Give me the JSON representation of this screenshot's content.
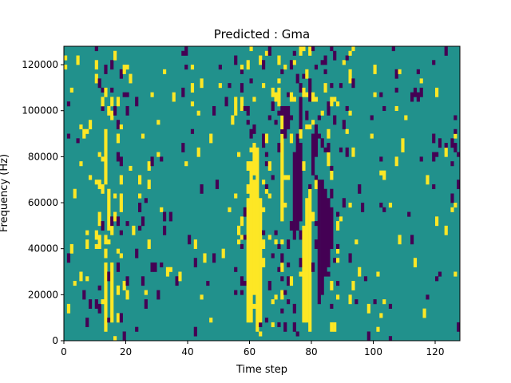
{
  "chart_data": {
    "type": "heatmap",
    "title": "Predicted : Gma",
    "xlabel": "Time step",
    "ylabel": "Frequency (Hz)",
    "xlim": [
      0,
      128
    ],
    "ylim": [
      0,
      128000
    ],
    "x_ticks": [
      0,
      20,
      40,
      60,
      80,
      100,
      120
    ],
    "y_ticks": [
      0,
      20000,
      40000,
      60000,
      80000,
      100000,
      120000
    ],
    "x_tick_labels": [
      "0",
      "20",
      "40",
      "60",
      "80",
      "100",
      "120"
    ],
    "y_tick_labels": [
      "0",
      "20000",
      "40000",
      "60000",
      "80000",
      "100000",
      "120000"
    ],
    "n_time_steps": 128,
    "n_freq_bins": 64,
    "levels": {
      "low": -1,
      "background": 0,
      "high": 1
    },
    "colors": {
      "low": "#440154",
      "background": "#21918c",
      "high": "#fde725"
    },
    "high_runs": [
      [
        13,
        2,
        16
      ],
      [
        13,
        34,
        45
      ],
      [
        14,
        24,
        30
      ],
      [
        15,
        4,
        16
      ],
      [
        59,
        4,
        30
      ],
      [
        60,
        4,
        36
      ],
      [
        61,
        10,
        34
      ],
      [
        62,
        2,
        40
      ],
      [
        63,
        4,
        30
      ],
      [
        70,
        26,
        44
      ],
      [
        77,
        4,
        24
      ],
      [
        78,
        4,
        30
      ],
      [
        79,
        2,
        32
      ],
      [
        60,
        34,
        38
      ],
      [
        61,
        36,
        42
      ],
      [
        70,
        46,
        48
      ]
    ],
    "low_runs": [
      [
        74,
        22,
        40
      ],
      [
        75,
        24,
        44
      ],
      [
        76,
        26,
        42
      ],
      [
        82,
        8,
        34
      ],
      [
        83,
        10,
        34
      ],
      [
        84,
        14,
        32
      ],
      [
        85,
        16,
        30
      ],
      [
        86,
        20,
        28
      ],
      [
        80,
        36,
        44
      ],
      [
        81,
        40,
        46
      ],
      [
        76,
        46,
        52
      ],
      [
        71,
        44,
        50
      ],
      [
        72,
        46,
        50
      ]
    ]
  }
}
